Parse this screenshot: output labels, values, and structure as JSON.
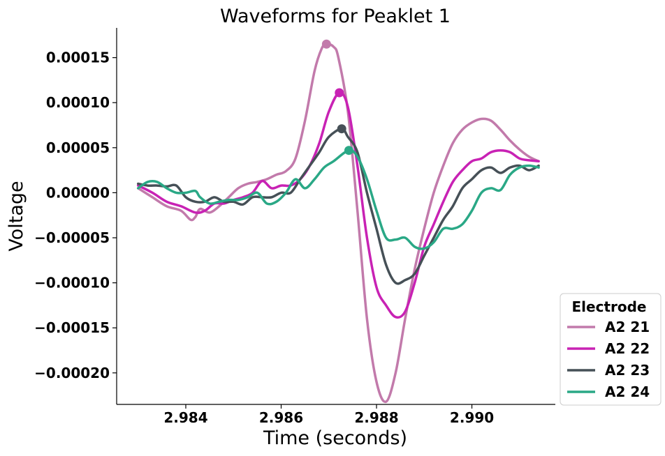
{
  "chart_data": {
    "type": "line",
    "title": "Waveforms for Peaklet 1",
    "xlabel": "Time (seconds)",
    "ylabel": "Voltage",
    "xlim": [
      2.98255,
      2.99175
    ],
    "ylim": [
      -0.000235,
      0.000183
    ],
    "xticks": [
      2.984,
      2.986,
      2.988,
      2.99
    ],
    "xtick_labels": [
      "2.984",
      "2.986",
      "2.988",
      "2.990"
    ],
    "yticks": [
      0.00015,
      0.0001,
      5e-05,
      0.0,
      -5e-05,
      -0.0001,
      -0.00015,
      -0.0002
    ],
    "ytick_labels": [
      "0.00015",
      "0.00010",
      "0.00005",
      "0.00000",
      "−0.00005",
      "−0.00010",
      "−0.00015",
      "−0.00020"
    ],
    "grid": false,
    "legend": {
      "title": "Electrode",
      "placement": "outside-bottom-right"
    },
    "series": [
      {
        "name": "A2 21",
        "color": "#c27aab",
        "peak": [
          2.98695,
          0.000165
        ],
        "x": [
          2.983,
          2.9833,
          2.9836,
          2.9839,
          2.9841,
          2.9842,
          2.9843,
          2.9845,
          2.9847,
          2.9849,
          2.9851,
          2.9853,
          2.9855,
          2.9857,
          2.9859,
          2.9861,
          2.9863,
          2.9865,
          2.9867,
          2.98685,
          2.98695,
          2.9871,
          2.9872,
          2.9874,
          2.9876,
          2.9878,
          2.988,
          2.9882,
          2.9884,
          2.9886,
          2.9888,
          2.989,
          2.9892,
          2.9894,
          2.9896,
          2.9898,
          2.99,
          2.9902,
          2.9904,
          2.9906,
          2.9908,
          2.991,
          2.9912,
          2.9914
        ],
        "y": [
          5e-06,
          -5e-06,
          -1.5e-05,
          -2e-05,
          -3e-05,
          -2.7e-05,
          -1.8e-05,
          -2.2e-05,
          -1.5e-05,
          -5e-06,
          5e-06,
          1e-05,
          1.2e-05,
          1.5e-05,
          2e-05,
          2.4e-05,
          3.8e-05,
          8e-05,
          0.000135,
          0.00016,
          0.000165,
          0.000162,
          0.00015,
          9e-05,
          -2e-05,
          -0.00014,
          -0.00021,
          -0.000232,
          -0.0002,
          -0.00014,
          -8.5e-05,
          -4e-05,
          0.0,
          3e-05,
          5.5e-05,
          7e-05,
          7.8e-05,
          8.2e-05,
          8e-05,
          7e-05,
          5.8e-05,
          4.8e-05,
          4e-05,
          3.5e-05
        ]
      },
      {
        "name": "A2 22",
        "color": "#c822b4",
        "peak": [
          2.98722,
          0.000111
        ],
        "x": [
          2.983,
          2.9833,
          2.9836,
          2.9839,
          2.9842,
          2.9844,
          2.9846,
          2.9848,
          2.985,
          2.9852,
          2.9854,
          2.9856,
          2.9858,
          2.986,
          2.9862,
          2.9864,
          2.9866,
          2.9868,
          2.987,
          2.98722,
          2.9874,
          2.9876,
          2.9878,
          2.988,
          2.9882,
          2.9884,
          2.9886,
          2.9888,
          2.989,
          2.9892,
          2.9894,
          2.9896,
          2.9898,
          2.99,
          2.9902,
          2.9904,
          2.9906,
          2.9908,
          2.991,
          2.9912,
          2.9914
        ],
        "y": [
          8e-06,
          0.0,
          -1e-05,
          -1.5e-05,
          -2.2e-05,
          -2e-05,
          -1.2e-05,
          -1.2e-05,
          -8e-06,
          -5e-06,
          0.0,
          1.3e-05,
          5e-06,
          8e-06,
          8e-06,
          1.5e-05,
          3e-05,
          5.5e-05,
          9e-05,
          0.000111,
          9.5e-05,
          3e-05,
          -5e-05,
          -0.000105,
          -0.000125,
          -0.000138,
          -0.000132,
          -0.0001,
          -6e-05,
          -3.5e-05,
          -1e-05,
          1.2e-05,
          2.5e-05,
          3.5e-05,
          3.8e-05,
          4.5e-05,
          4.7e-05,
          4.5e-05,
          3.8e-05,
          3.6e-05,
          3.5e-05
        ]
      },
      {
        "name": "A2 23",
        "color": "#465057",
        "peak": [
          2.98727,
          7.1e-05
        ],
        "x": [
          2.983,
          2.9832,
          2.9834,
          2.9836,
          2.9838,
          2.984,
          2.9842,
          2.9844,
          2.9846,
          2.9848,
          2.985,
          2.9852,
          2.9854,
          2.9856,
          2.9858,
          2.986,
          2.9862,
          2.9864,
          2.9866,
          2.9868,
          2.987,
          2.98727,
          2.9874,
          2.9876,
          2.9878,
          2.988,
          2.9882,
          2.9884,
          2.9886,
          2.9888,
          2.989,
          2.9892,
          2.9894,
          2.9896,
          2.9898,
          2.99,
          2.9902,
          2.9904,
          2.9906,
          2.9908,
          2.991,
          2.9912,
          2.9914
        ],
        "y": [
          1e-05,
          8e-06,
          8e-06,
          7e-06,
          8e-06,
          -5e-06,
          -1e-05,
          -1e-05,
          -5e-06,
          -1e-05,
          -1e-05,
          -1.3e-05,
          -5e-06,
          -5e-06,
          -5e-06,
          0.0,
          0.0,
          1.5e-05,
          3e-05,
          4.5e-05,
          6.2e-05,
          7.1e-05,
          6.2e-05,
          4.5e-05,
          0.0,
          -4e-05,
          -8e-05,
          -0.0001,
          -9.7e-05,
          -9e-05,
          -7e-05,
          -5e-05,
          -3e-05,
          -1.5e-05,
          5e-06,
          1.5e-05,
          2.5e-05,
          2.8e-05,
          2.2e-05,
          2.8e-05,
          3e-05,
          2.5e-05,
          3e-05
        ]
      },
      {
        "name": "A2 24",
        "color": "#2aa886",
        "peak": [
          2.98742,
          4.7e-05
        ],
        "x": [
          2.983,
          2.9832,
          2.9834,
          2.9836,
          2.9838,
          2.984,
          2.9842,
          2.9843,
          2.9845,
          2.9847,
          2.9849,
          2.9851,
          2.9853,
          2.9855,
          2.9857,
          2.9859,
          2.9861,
          2.9863,
          2.9865,
          2.9867,
          2.9869,
          2.9871,
          2.98742,
          2.9876,
          2.9878,
          2.988,
          2.9882,
          2.9884,
          2.9886,
          2.9888,
          2.989,
          2.9892,
          2.9894,
          2.9896,
          2.9898,
          2.99,
          2.9902,
          2.9904,
          2.9906,
          2.9908,
          2.991,
          2.9912,
          2.9914
        ],
        "y": [
          5e-06,
          1.2e-05,
          1.2e-05,
          5e-06,
          0.0,
          0.0,
          2e-06,
          -5e-06,
          -1.2e-05,
          -1e-05,
          -8e-06,
          -8e-06,
          -5e-06,
          0.0,
          -1.2e-05,
          -1e-05,
          0.0,
          1.5e-05,
          5e-06,
          1.5e-05,
          2.8e-05,
          3.5e-05,
          4.7e-05,
          4e-05,
          1.5e-05,
          -2e-05,
          -5e-05,
          -5.2e-05,
          -5e-05,
          -6e-05,
          -6.2e-05,
          -5.5e-05,
          -4e-05,
          -4e-05,
          -3.5e-05,
          -2e-05,
          0.0,
          5e-06,
          3e-06,
          2e-05,
          2.8e-05,
          3e-05,
          2.8e-05
        ]
      }
    ]
  }
}
